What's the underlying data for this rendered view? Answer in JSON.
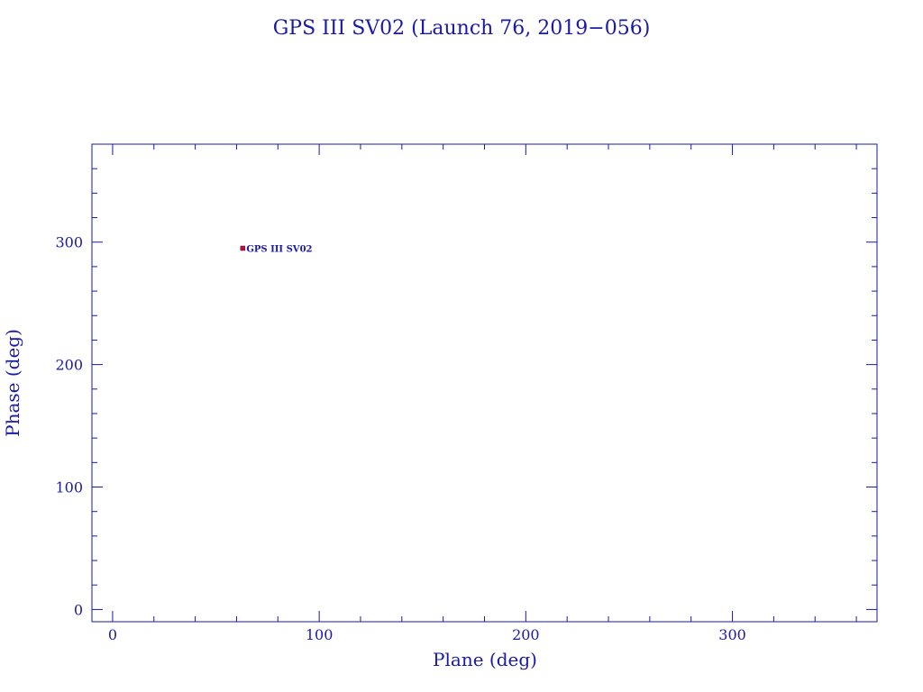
{
  "chart_data": {
    "type": "scatter",
    "title": "GPS III SV02 (Launch 76, 2019−056)",
    "xlabel": "Plane (deg)",
    "ylabel": "Phase (deg)",
    "xlim": [
      -10,
      370
    ],
    "ylim": [
      -10,
      380
    ],
    "x_ticks": [
      0,
      100,
      200,
      300
    ],
    "y_ticks": [
      0,
      100,
      200,
      300
    ],
    "x_minor_step": 20,
    "y_minor_step": 20,
    "grid": false,
    "points": [
      {
        "x": 63,
        "y": 295,
        "label": "GPS III SV02"
      }
    ],
    "colors": {
      "axis": "#1a1aa6",
      "marker": "#d01010",
      "marker_edge": "#1a1aa6"
    }
  }
}
